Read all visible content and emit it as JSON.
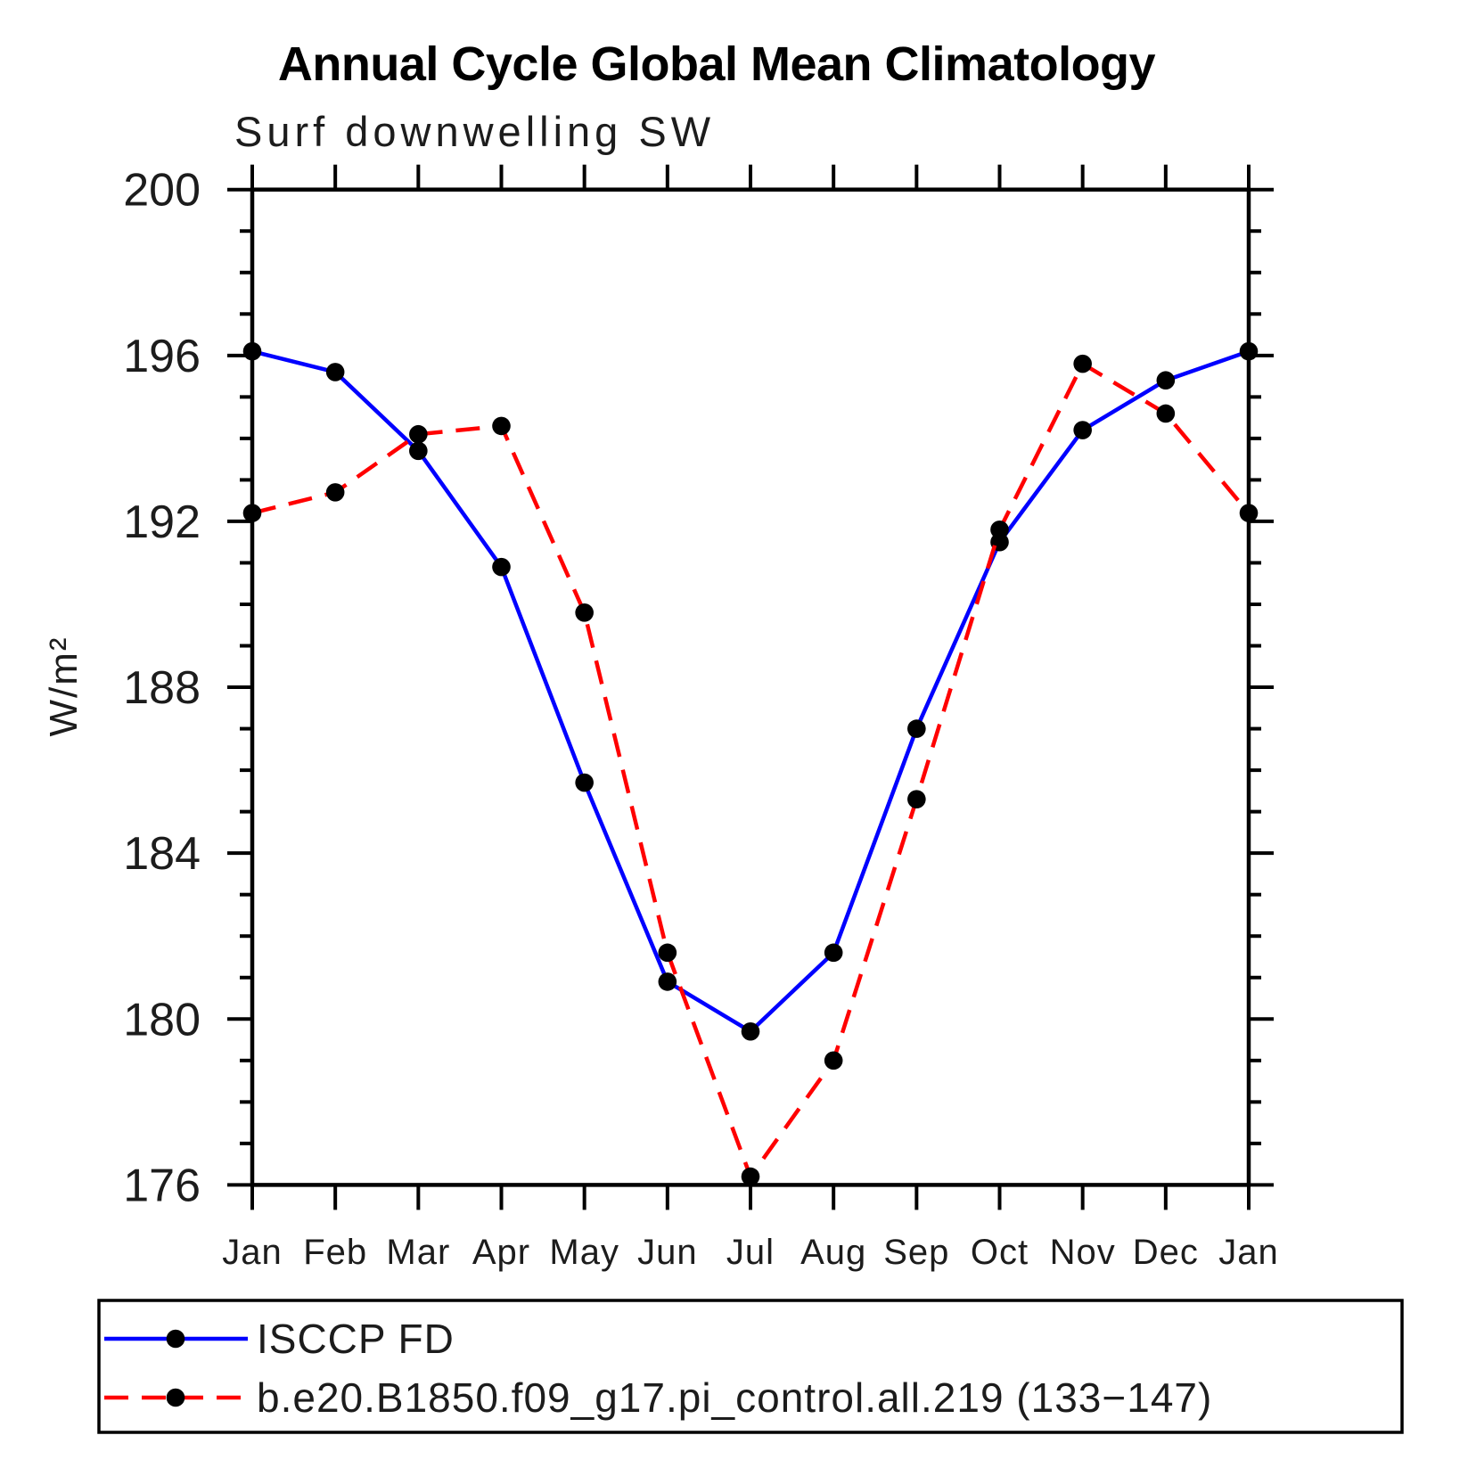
{
  "chart_data": {
    "type": "line",
    "title": "Annual Cycle Global Mean Climatology",
    "subtitle": "Surf downwelling SW",
    "xlabel": "",
    "ylabel": "W/m²",
    "categories": [
      "Jan",
      "Feb",
      "Mar",
      "Apr",
      "May",
      "Jun",
      "Jul",
      "Aug",
      "Sep",
      "Oct",
      "Nov",
      "Dec",
      "Jan"
    ],
    "ylim": [
      176,
      200
    ],
    "yticks_major": [
      176,
      180,
      184,
      188,
      192,
      196,
      200
    ],
    "ytick_minor_step": 1,
    "grid": false,
    "legend_position": "bottom",
    "axis_color": "#000000",
    "marker_color": "#000000",
    "series": [
      {
        "name": "ISCCP FD",
        "color": "#0000ff",
        "style": "solid",
        "marker": "circle",
        "values": [
          196.1,
          195.6,
          193.7,
          190.9,
          185.7,
          180.9,
          179.7,
          181.6,
          187.0,
          191.5,
          194.2,
          195.4,
          196.1
        ]
      },
      {
        "name": "b.e20.B1850.f09_g17.pi_control.all.219 (133−147)",
        "color": "#ff0000",
        "style": "dashed",
        "marker": "circle",
        "values": [
          192.2,
          192.7,
          194.1,
          194.3,
          189.8,
          181.6,
          176.2,
          179.0,
          185.3,
          191.8,
          195.8,
          194.6,
          192.2
        ]
      }
    ]
  }
}
